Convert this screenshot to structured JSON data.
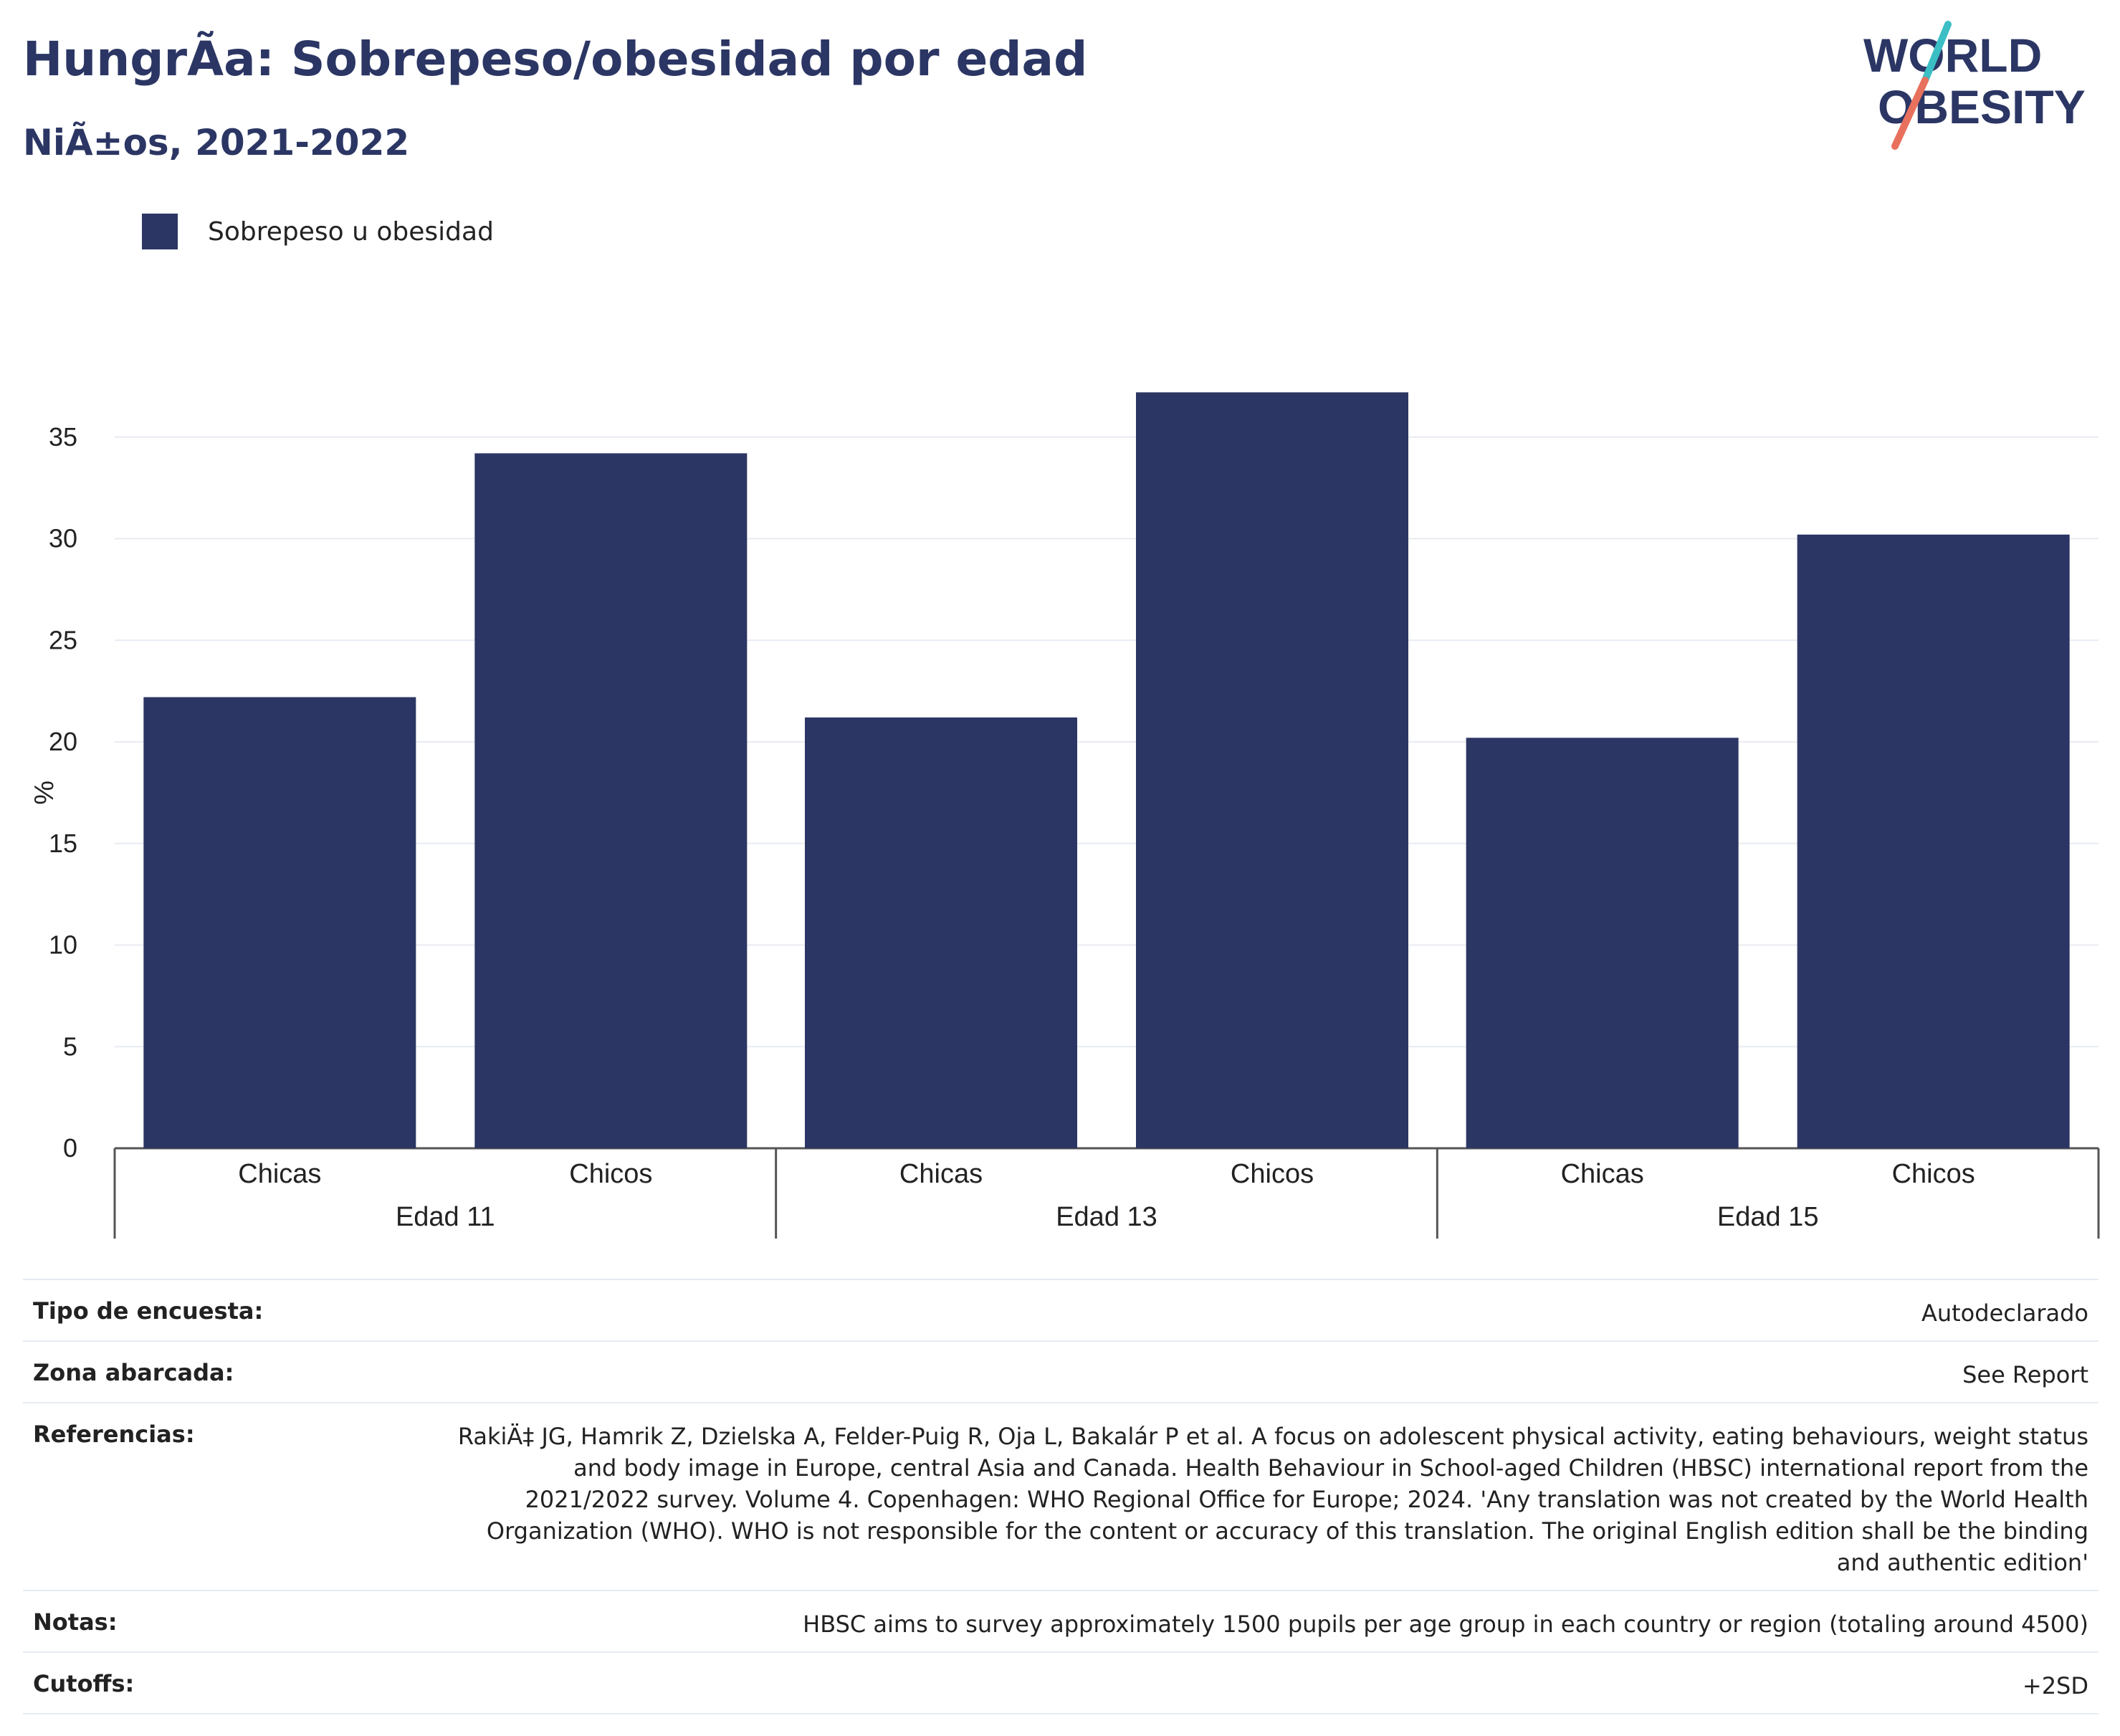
{
  "header": {
    "title": "HungrÃ­a: Sobrepeso/obesidad por edad",
    "subtitle": "NiÃ±os, 2021-2022"
  },
  "logo": {
    "line1": "WORLD",
    "line2": "OBESITY"
  },
  "colors": {
    "bar": "#2b3664",
    "brand_navy": "#2b3664",
    "logo_teal": "#3bbfc4",
    "logo_coral": "#e8715e",
    "grid": "#e8ebf2"
  },
  "legend": {
    "label": "Sobrepeso u obesidad"
  },
  "chart_data": {
    "type": "bar",
    "title": "HungrÃ­a: Sobrepeso/obesidad por edad",
    "subtitle": "NiÃ±os, 2021-2022",
    "ylabel": "%",
    "xlabel": "",
    "ylim": [
      0,
      38
    ],
    "yticks": [
      0,
      5,
      10,
      15,
      20,
      25,
      30,
      35
    ],
    "grid": true,
    "legend_position": "top-left",
    "groups": [
      {
        "label": "Edad 11",
        "categories": [
          "Chicas",
          "Chicos"
        ]
      },
      {
        "label": "Edad 13",
        "categories": [
          "Chicas",
          "Chicos"
        ]
      },
      {
        "label": "Edad 15",
        "categories": [
          "Chicas",
          "Chicos"
        ]
      }
    ],
    "series": [
      {
        "name": "Sobrepeso u obesidad",
        "values": [
          22.2,
          34.2,
          21.2,
          37.2,
          20.2,
          30.2
        ]
      }
    ]
  },
  "meta": [
    {
      "key": "Tipo de encuesta:",
      "value": "Autodeclarado"
    },
    {
      "key": "Zona abarcada:",
      "value": "See Report"
    },
    {
      "key": "Referencias:",
      "value": "RakiÄ‡ JG, Hamrik Z, Dzielska A, Felder-Puig R, Oja L, Bakalár P et al. A focus on adolescent physical activity, eating behaviours, weight status and body image in Europe, central Asia and Canada. Health Behaviour in School-aged Children (HBSC) international report from the 2021/2022 survey. Volume 4. Copenhagen: WHO Regional Office for Europe; 2024. 'Any translation was not created by the World Health Organization (WHO). WHO is not responsible for the content or accuracy of this translation. The original English edition shall be the binding and authentic edition'"
    },
    {
      "key": "Notas:",
      "value": "HBSC aims to survey approximately 1500 pupils per age group in each country or region (totaling around 4500)"
    },
    {
      "key": "Cutoffs:",
      "value": "+2SD"
    }
  ]
}
